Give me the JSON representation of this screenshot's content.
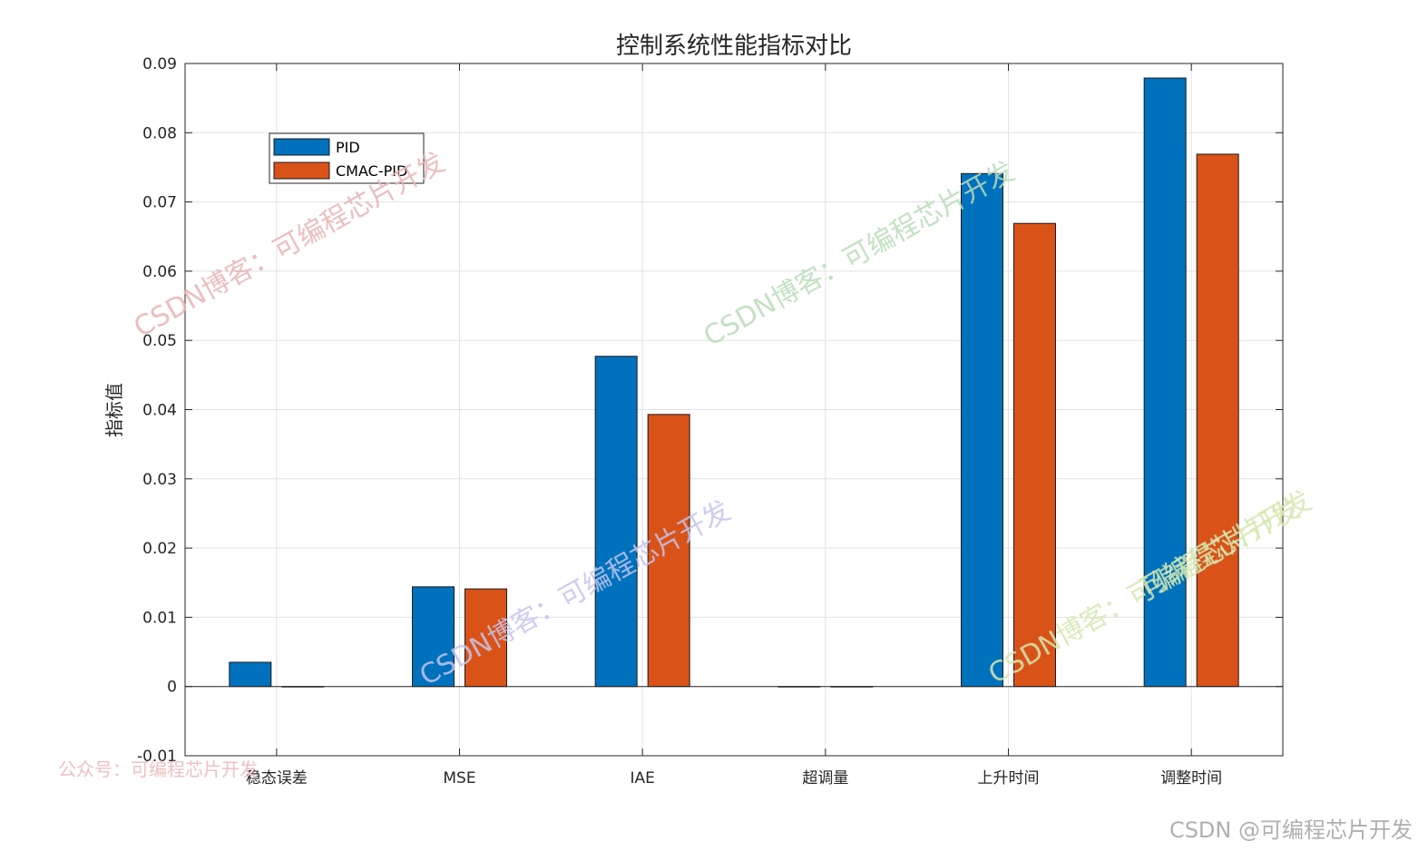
{
  "chart_data": {
    "type": "bar",
    "title": "控制系统性能指标对比",
    "xlabel": "",
    "ylabel": "指标值",
    "categories": [
      "稳态误差",
      "MSE",
      "IAE",
      "超调量",
      "上升时间",
      "调整时间"
    ],
    "series": [
      {
        "name": "PID",
        "color": "#0072BD",
        "values": [
          0.0035,
          0.0144,
          0.0477,
          0.0,
          0.0741,
          0.0879
        ]
      },
      {
        "name": "CMAC-PID",
        "color": "#D95319",
        "values": [
          0.0,
          0.0141,
          0.0393,
          0.0,
          0.0669,
          0.0769
        ]
      }
    ],
    "ylim": [
      -0.01,
      0.09
    ],
    "yticks": [
      -0.01,
      0,
      0.01,
      0.02,
      0.03,
      0.04,
      0.05,
      0.06,
      0.07,
      0.08,
      0.09
    ],
    "ytick_labels": [
      "-0.01",
      "0",
      "0.01",
      "0.02",
      "0.03",
      "0.04",
      "0.05",
      "0.06",
      "0.07",
      "0.08",
      "0.09"
    ],
    "grid": true,
    "legend_position": "top-left"
  },
  "watermarks": {
    "diagonal_text": "CSDN博客：可编程芯片开发",
    "diagonal_colors": [
      "#e8b4b4",
      "#b8dcb8",
      "#c4c4ec",
      "#d4e8b0"
    ],
    "bottom_left": "公众号：可编程芯片开发",
    "bottom_left_color": "#f0c0c0",
    "bottom_right": "CSDN @可编程芯片开发",
    "bottom_right_color": "#b0b0b0"
  }
}
